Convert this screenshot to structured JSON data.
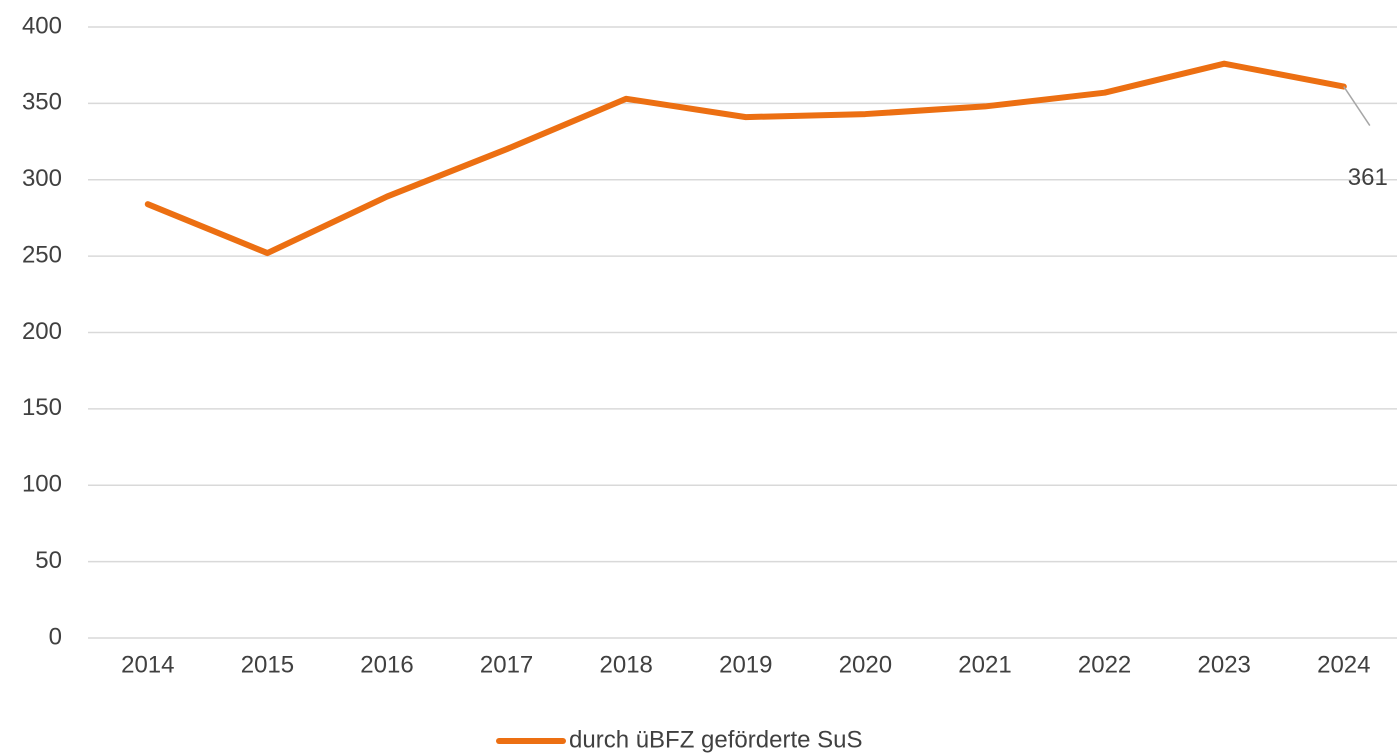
{
  "chart_data": {
    "type": "line",
    "categories": [
      "2014",
      "2015",
      "2016",
      "2017",
      "2018",
      "2019",
      "2020",
      "2021",
      "2022",
      "2023",
      "2024"
    ],
    "series": [
      {
        "name": "durch üBFZ geförderte SuS",
        "color": "#ec6f12",
        "values": [
          284,
          252,
          289,
          320,
          353,
          341,
          343,
          348,
          357,
          376,
          361
        ]
      }
    ],
    "ylim": [
      0,
      400
    ],
    "yticks": [
      0,
      50,
      100,
      150,
      200,
      250,
      300,
      350,
      400
    ],
    "grid": true,
    "legend": "bottom"
  }
}
